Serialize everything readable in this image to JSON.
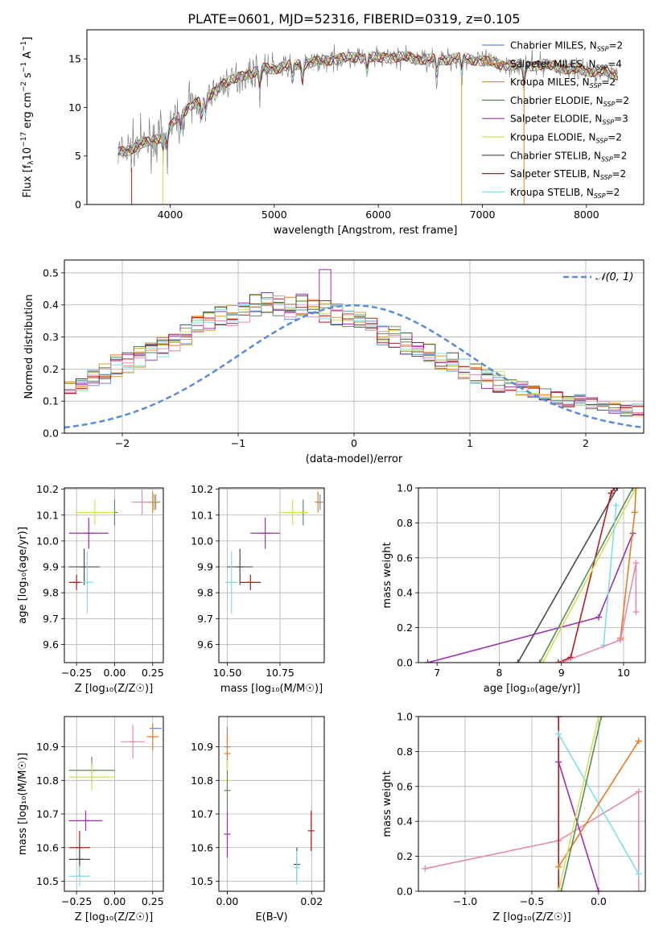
{
  "figure_title": "PLATE=0601, MJD=52316, FIBERID=0319, z=0.105",
  "colors": {
    "Chabrier MILES": "#6a8fd8",
    "Salpeter MILES": "#e67e22",
    "Kroupa MILES": "#c9a227",
    "Chabrier ELODIE": "#5e8a5e",
    "Salpeter ELODIE": "#9b2fae",
    "Kroupa ELODIE": "#d4e157",
    "Chabrier STELIB": "#4a4a4a",
    "Salpeter STELIB": "#b71c1c",
    "Kroupa STELIB": "#80deea",
    "observed": "#808080",
    "extra_pink": "#e48bb0",
    "gaussian": "#5b8bd9"
  },
  "chart_data": [
    {
      "type": "line",
      "panel": "spectrum",
      "xlabel": "wavelength [Angstrom, rest frame]",
      "ylabel_parts": [
        "Flux [f",
        "λ",
        "10",
        "−17",
        " erg cm",
        "−2",
        " s",
        "−1",
        " A",
        "−1",
        "]"
      ],
      "xlim": [
        3200,
        8550
      ],
      "ylim": [
        0,
        18
      ],
      "xticks": [
        4000,
        5000,
        6000,
        7000,
        8000
      ],
      "yticks": [
        0,
        5,
        10,
        15
      ],
      "grid": false,
      "legend_position": "top-right",
      "legend": [
        {
          "name": "Chabrier MILES",
          "base": "Chabrier MILES, N",
          "sub": "SSP",
          "tail": "=2"
        },
        {
          "name": "Salpeter MILES",
          "base": "Salpeter MILES, N",
          "sub": "SSP",
          "tail": "=4"
        },
        {
          "name": "Kroupa MILES",
          "base": "Kroupa MILES, N",
          "sub": "SSP",
          "tail": "=2"
        },
        {
          "name": "Chabrier ELODIE",
          "base": "Chabrier ELODIE, N",
          "sub": "SSP",
          "tail": "=2"
        },
        {
          "name": "Salpeter ELODIE",
          "base": "Salpeter ELODIE, N",
          "sub": "SSP",
          "tail": "=3"
        },
        {
          "name": "Kroupa ELODIE",
          "base": "Kroupa ELODIE, N",
          "sub": "SSP",
          "tail": "=2"
        },
        {
          "name": "Chabrier STELIB",
          "base": "Chabrier STELIB, N",
          "sub": "SSP",
          "tail": "=2"
        },
        {
          "name": "Salpeter STELIB",
          "base": "Salpeter STELIB, N",
          "sub": "SSP",
          "tail": "=2"
        },
        {
          "name": "Kroupa STELIB",
          "base": "Kroupa STELIB, N",
          "sub": "SSP",
          "tail": "=2"
        }
      ],
      "continuum": {
        "x": [
          3500,
          3600,
          3700,
          3800,
          3900,
          4000,
          4100,
          4200,
          4300,
          4400,
          4500,
          4600,
          4700,
          4800,
          4900,
          5000,
          5200,
          5400,
          5600,
          5800,
          6000,
          6200,
          6400,
          6600,
          6800,
          7000,
          7200,
          7400,
          7600,
          7800,
          8000,
          8200,
          8300
        ],
        "y": [
          5.3,
          5.6,
          6.2,
          6.4,
          6.9,
          8.0,
          9.2,
          10.3,
          10.6,
          11.4,
          12.4,
          12.8,
          13.3,
          13.6,
          14.0,
          14.0,
          14.4,
          14.7,
          15.0,
          15.2,
          15.1,
          15.2,
          15.0,
          14.9,
          15.1,
          14.8,
          14.4,
          14.3,
          14.4,
          14.0,
          13.8,
          13.6,
          13.4
        ]
      },
      "absorption_lines": [
        3934,
        3969,
        4102,
        4304,
        4341,
        4861,
        5175,
        5270,
        5892,
        6563,
        6800,
        7400
      ]
    },
    {
      "type": "step",
      "panel": "residuals",
      "xlabel": "(data-model)/error",
      "ylabel": "Normed distribution",
      "xlim": [
        -2.5,
        2.5
      ],
      "ylim": [
        0,
        0.54
      ],
      "xticks": [
        -2,
        -1,
        0,
        1,
        2
      ],
      "yticks": [
        0.0,
        0.1,
        0.2,
        0.3,
        0.4,
        0.5
      ],
      "grid": true,
      "bin_width": 0.1,
      "legend_position": "top-right",
      "gaussian": {
        "label": "𝒩(0, 1)",
        "mean": 0,
        "sigma": 1
      },
      "hist_mean": [
        0.04,
        0.04,
        0.05,
        0.05,
        0.06,
        0.07,
        0.08,
        0.1,
        0.11,
        0.12,
        0.14,
        0.15,
        0.17,
        0.19,
        0.21,
        0.22,
        0.24,
        0.26,
        0.27,
        0.29,
        0.31,
        0.33,
        0.35,
        0.36,
        0.37,
        0.38,
        0.4,
        0.41,
        0.4,
        0.39,
        0.4,
        0.39,
        0.38,
        0.37,
        0.36,
        0.35,
        0.33,
        0.31,
        0.3,
        0.28,
        0.27,
        0.25,
        0.23,
        0.22,
        0.2,
        0.19,
        0.17,
        0.16,
        0.15,
        0.14,
        0.13,
        0.12,
        0.11,
        0.1,
        0.1,
        0.09,
        0.08,
        0.08,
        0.07,
        0.07,
        0.06,
        0.06,
        0.05,
        0.05,
        0.05,
        0.04,
        0.04,
        0.04,
        0.04,
        0.03
      ],
      "hist_spike": {
        "series": "Salpeter ELODIE",
        "x": -0.25,
        "value": 0.51
      }
    },
    {
      "type": "scatter",
      "panel": "age-vs-metallicity",
      "xlabel": "Z [log₁₀(Z/Z☉)]",
      "ylabel": "age  [log₁₀(age/yr)]",
      "xlim": [
        -0.33,
        0.32
      ],
      "ylim": [
        9.53,
        10.205
      ],
      "xticks": [
        -0.25,
        0.0,
        0.25
      ],
      "xticklabels": [
        "−0.25",
        "0.00",
        "0.25"
      ],
      "yticks": [
        9.6,
        9.7,
        9.8,
        9.9,
        10.0,
        10.1,
        10.2
      ],
      "grid": true,
      "points": [
        {
          "series": "Chabrier MILES",
          "x": 0.27,
          "y": 10.15,
          "xerr": 0.03,
          "yerr": 0.03
        },
        {
          "series": "Salpeter MILES",
          "x": 0.25,
          "y": 10.15,
          "xerr": 0.04,
          "yerr": 0.04
        },
        {
          "series": "Kroupa MILES",
          "x": 0.26,
          "y": 10.15,
          "xerr": 0.03,
          "yerr": 0.03
        },
        {
          "series": "extra_pink",
          "x": 0.18,
          "y": 10.15,
          "xerr": 0.07,
          "yerr": 0.05
        },
        {
          "series": "Chabrier ELODIE",
          "x": 0.0,
          "y": 10.11,
          "xerr": 0.0,
          "yerr": 0.05
        },
        {
          "series": "Kroupa ELODIE",
          "x": -0.13,
          "y": 10.11,
          "xerr": 0.13,
          "yerr": 0.05
        },
        {
          "series": "Salpeter ELODIE",
          "x": -0.17,
          "y": 10.03,
          "xerr": 0.13,
          "yerr": 0.06
        },
        {
          "series": "Chabrier STELIB",
          "x": -0.2,
          "y": 9.9,
          "xerr": 0.1,
          "yerr": 0.07
        },
        {
          "series": "Salpeter STELIB",
          "x": -0.25,
          "y": 9.84,
          "xerr": 0.05,
          "yerr": 0.03
        },
        {
          "series": "Kroupa STELIB",
          "x": -0.18,
          "y": 9.84,
          "xerr": 0.04,
          "yerr": 0.12
        }
      ]
    },
    {
      "type": "scatter",
      "panel": "age-vs-mass",
      "xlabel": "mass [log₁₀(M/M☉)]",
      "xlim": [
        10.46,
        10.96
      ],
      "ylim": [
        9.53,
        10.205
      ],
      "xticks": [
        10.5,
        10.75
      ],
      "xticklabels": [
        "10.50",
        "10.75"
      ],
      "yticks": [
        9.6,
        9.7,
        9.8,
        9.9,
        10.0,
        10.1,
        10.2
      ],
      "grid": true,
      "points": [
        {
          "series": "Chabrier MILES",
          "x": 10.94,
          "y": 10.15,
          "xerr": 0.0,
          "yerr": 0.03
        },
        {
          "series": "Salpeter MILES",
          "x": 10.93,
          "y": 10.15,
          "xerr": 0.01,
          "yerr": 0.04
        },
        {
          "series": "Chabrier ELODIE",
          "x": 10.86,
          "y": 10.11,
          "xerr": 0.02,
          "yerr": 0.05
        },
        {
          "series": "Kroupa ELODIE",
          "x": 10.81,
          "y": 10.11,
          "xerr": 0.07,
          "yerr": 0.05
        },
        {
          "series": "Salpeter ELODIE",
          "x": 10.68,
          "y": 10.03,
          "xerr": 0.07,
          "yerr": 0.06
        },
        {
          "series": "Chabrier STELIB",
          "x": 10.56,
          "y": 9.9,
          "xerr": 0.06,
          "yerr": 0.07
        },
        {
          "series": "Salpeter STELIB",
          "x": 10.61,
          "y": 9.84,
          "xerr": 0.05,
          "yerr": 0.03
        },
        {
          "series": "Kroupa STELIB",
          "x": 10.52,
          "y": 9.84,
          "xerr": 0.03,
          "yerr": 0.12
        }
      ]
    },
    {
      "type": "line",
      "panel": "mass-weight-vs-age",
      "xlabel": "age  [log₁₀(age/yr)]",
      "ylabel": "mass weight",
      "xlim": [
        6.7,
        10.35
      ],
      "ylim": [
        0,
        1
      ],
      "xticks": [
        7,
        8,
        9,
        10
      ],
      "yticks": [
        0.0,
        0.2,
        0.4,
        0.6,
        0.8,
        1.0
      ],
      "grid": true,
      "series": [
        {
          "name": "Salpeter ELODIE",
          "x": [
            6.85,
            9.6,
            10.15
          ],
          "y": [
            0.0,
            0.26,
            0.74
          ]
        },
        {
          "name": "Chabrier STELIB",
          "x": [
            8.3,
            9.9
          ],
          "y": [
            0.0,
            1.0
          ]
        },
        {
          "name": "Salpeter STELIB",
          "x": [
            8.95,
            9.15,
            9.8,
            9.85
          ],
          "y": [
            0.0,
            0.03,
            0.97,
            1.0
          ]
        },
        {
          "name": "Kroupa ELODIE",
          "x": [
            8.7,
            10.2
          ],
          "y": [
            0.0,
            1.0
          ]
        },
        {
          "name": "Chabrier ELODIE",
          "x": [
            8.65,
            10.15
          ],
          "y": [
            0.0,
            1.0
          ]
        },
        {
          "name": "Kroupa STELIB",
          "x": [
            9.68,
            9.88
          ],
          "y": [
            0.1,
            0.9
          ]
        },
        {
          "name": "Salpeter MILES",
          "x": [
            9.95,
            10.18,
            10.2
          ],
          "y": [
            0.14,
            0.86,
            1.0
          ]
        },
        {
          "name": "extra_pink",
          "x": [
            9.0,
            9.95,
            10.2,
            10.2
          ],
          "y": [
            0.0,
            0.13,
            0.57,
            0.29
          ]
        }
      ]
    },
    {
      "type": "scatter",
      "panel": "mass-vs-metallicity",
      "xlabel": "Z [log₁₀(Z/Z☉)]",
      "ylabel": "mass [log₁₀(M/M☉)]",
      "xlim": [
        -0.33,
        0.32
      ],
      "ylim": [
        10.47,
        10.99
      ],
      "xticks": [
        -0.25,
        0.0,
        0.25
      ],
      "xticklabels": [
        "−0.25",
        "0.00",
        "0.25"
      ],
      "yticks": [
        10.5,
        10.6,
        10.7,
        10.8,
        10.9
      ],
      "grid": true,
      "points": [
        {
          "series": "Chabrier MILES",
          "x": 0.27,
          "y": 10.955,
          "xerr": 0.04,
          "yerr": 0.0
        },
        {
          "series": "Salpeter MILES",
          "x": 0.25,
          "y": 10.93,
          "xerr": 0.04,
          "yerr": 0.04
        },
        {
          "series": "extra_pink",
          "x": 0.12,
          "y": 10.915,
          "xerr": 0.08,
          "yerr": 0.05
        },
        {
          "series": "Chabrier ELODIE",
          "x": -0.15,
          "y": 10.83,
          "xerr": 0.15,
          "yerr": 0.04
        },
        {
          "series": "Kroupa ELODIE",
          "x": -0.15,
          "y": 10.81,
          "xerr": 0.15,
          "yerr": 0.04
        },
        {
          "series": "Salpeter ELODIE",
          "x": -0.19,
          "y": 10.68,
          "xerr": 0.11,
          "yerr": 0.03
        },
        {
          "series": "Salpeter STELIB",
          "x": -0.23,
          "y": 10.6,
          "xerr": 0.07,
          "yerr": 0.05
        },
        {
          "series": "Chabrier STELIB",
          "x": -0.23,
          "y": 10.565,
          "xerr": 0.07,
          "yerr": 0.05
        },
        {
          "series": "Kroupa STELIB",
          "x": -0.23,
          "y": 10.515,
          "xerr": 0.07,
          "yerr": 0.03
        }
      ]
    },
    {
      "type": "scatter",
      "panel": "mass-vs-extinction",
      "xlabel": "E(B-V)",
      "xlim": [
        -0.002,
        0.023
      ],
      "ylim": [
        10.47,
        10.99
      ],
      "xticks": [
        0.0,
        0.02
      ],
      "xticklabels": [
        "0.00",
        "0.02"
      ],
      "yticks": [
        10.5,
        10.6,
        10.7,
        10.8,
        10.9
      ],
      "grid": true,
      "points": [
        {
          "series": "Chabrier MILES",
          "x": 0.0,
          "y": 10.9,
          "xerr": 0.0,
          "yerr": 0.06
        },
        {
          "series": "Salpeter MILES",
          "x": 0.0,
          "y": 10.88,
          "xerr": 0.0,
          "yerr": 0.06
        },
        {
          "series": "Kroupa ELODIE",
          "x": 0.0,
          "y": 10.8,
          "xerr": 0.0,
          "yerr": 0.06
        },
        {
          "series": "Chabrier ELODIE",
          "x": 0.0,
          "y": 10.77,
          "xerr": 0.0,
          "yerr": 0.06
        },
        {
          "series": "Salpeter ELODIE",
          "x": 0.0,
          "y": 10.64,
          "xerr": 0.0,
          "yerr": 0.07
        },
        {
          "series": "Chabrier STELIB",
          "x": 0.0165,
          "y": 10.55,
          "xerr": 0.0,
          "yerr": 0.05
        },
        {
          "series": "Kroupa STELIB",
          "x": 0.0165,
          "y": 10.54,
          "xerr": 0.0,
          "yerr": 0.05
        },
        {
          "series": "Salpeter STELIB",
          "x": 0.0199,
          "y": 10.65,
          "xerr": 0.0,
          "yerr": 0.06
        }
      ]
    },
    {
      "type": "line",
      "panel": "mass-weight-vs-metallicity",
      "xlabel": "Z [log₁₀(Z/Z☉)]",
      "ylabel": "mass weight",
      "xlim": [
        -1.35,
        0.35
      ],
      "ylim": [
        0,
        1
      ],
      "xticks": [
        -1.0,
        -0.5,
        0.0
      ],
      "xticklabels": [
        "−1.0",
        "−0.5",
        "0.0"
      ],
      "yticks": [
        0.0,
        0.2,
        0.4,
        0.6,
        0.8,
        1.0
      ],
      "grid": true,
      "series": [
        {
          "name": "extra_pink",
          "x": [
            -1.3,
            -0.3,
            0.3,
            0.3
          ],
          "y": [
            0.13,
            0.29,
            0.57,
            0.0
          ]
        },
        {
          "name": "Salpeter ELODIE",
          "x": [
            -0.3,
            -0.3,
            0.0
          ],
          "y": [
            1.0,
            0.74,
            0.0
          ]
        },
        {
          "name": "Salpeter STELIB",
          "x": [
            -0.3,
            -0.3
          ],
          "y": [
            0.0,
            1.0
          ]
        },
        {
          "name": "Kroupa STELIB",
          "x": [
            -0.3,
            0.3
          ],
          "y": [
            0.9,
            0.1
          ]
        },
        {
          "name": "Salpeter MILES",
          "x": [
            -0.3,
            0.3
          ],
          "y": [
            0.14,
            0.86
          ]
        },
        {
          "name": "Kroupa ELODIE",
          "x": [
            -0.3,
            0.0
          ],
          "y": [
            0.0,
            1.0
          ]
        },
        {
          "name": "Chabrier ELODIE",
          "x": [
            -0.28,
            0.02
          ],
          "y": [
            0.0,
            1.0
          ]
        }
      ]
    }
  ]
}
